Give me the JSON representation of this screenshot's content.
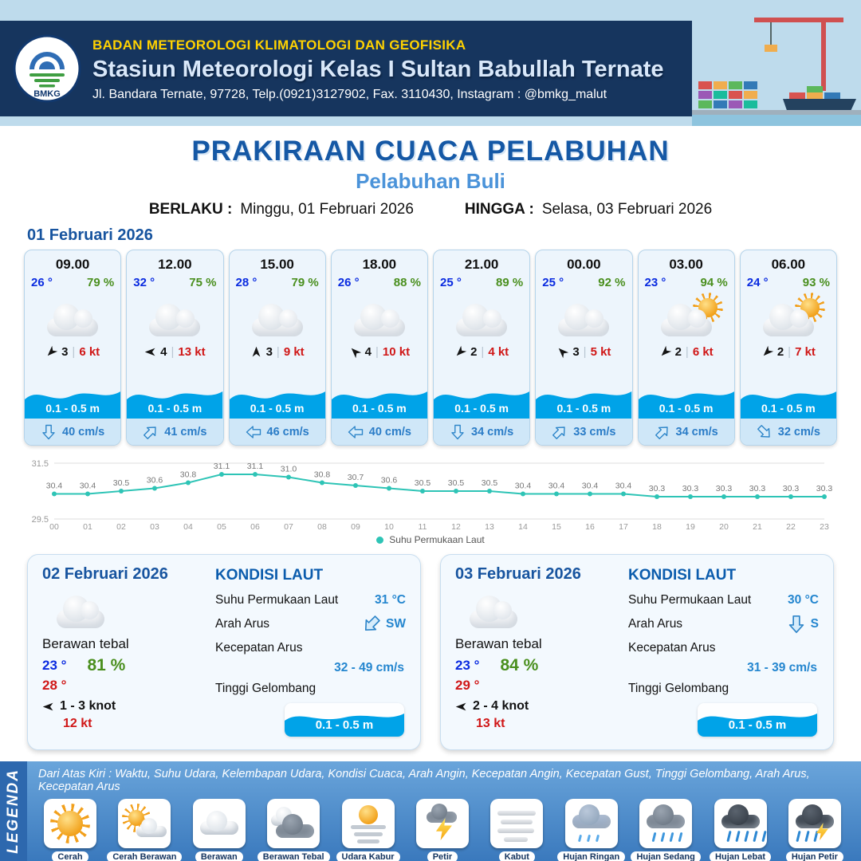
{
  "header": {
    "agency": "BADAN METEOROLOGI KLIMATOLOGI DAN GEOFISIKA",
    "station": "Stasiun Meteorologi Kelas I Sultan Babullah Ternate",
    "address": "Jl. Bandara Ternate, 97728, Telp.(0921)3127902, Fax. 3110430, Instagram : @bmkg_malut",
    "logo": "BMKG"
  },
  "title": {
    "main": "PRAKIRAAN CUACA PELABUHAN",
    "port": "Pelabuhan Buli"
  },
  "validity": {
    "berlaku_label": "BERLAKU :",
    "berlaku": "Minggu, 01 Februari 2026",
    "hingga_label": "HINGGA :",
    "hingga": "Selasa, 03 Februari 2026"
  },
  "ui": {
    "separator": "|"
  },
  "day1": {
    "date": "01 Februari 2026",
    "cards": [
      {
        "time": "09.00",
        "temp": "26 °",
        "humidity": "79 %",
        "icon": "cloudy",
        "wind_dir": "SW",
        "wind_speed": "3",
        "wind_kt": "6 kt",
        "wave": "0.1 - 0.5 m",
        "current_dir": "S",
        "current_speed": "40 cm/s"
      },
      {
        "time": "12.00",
        "temp": "32 °",
        "humidity": "75 %",
        "icon": "cloudy",
        "wind_dir": "W",
        "wind_speed": "4",
        "wind_kt": "13 kt",
        "wave": "0.1 - 0.5 m",
        "current_dir": "NE",
        "current_speed": "41 cm/s"
      },
      {
        "time": "15.00",
        "temp": "28 °",
        "humidity": "79 %",
        "icon": "cloudy",
        "wind_dir": "N",
        "wind_speed": "3",
        "wind_kt": "9 kt",
        "wave": "0.1 - 0.5 m",
        "current_dir": "W",
        "current_speed": "46 cm/s"
      },
      {
        "time": "18.00",
        "temp": "26 °",
        "humidity": "88 %",
        "icon": "cloudy",
        "wind_dir": "NW",
        "wind_speed": "4",
        "wind_kt": "10 kt",
        "wave": "0.1 - 0.5 m",
        "current_dir": "W",
        "current_speed": "40 cm/s"
      },
      {
        "time": "21.00",
        "temp": "25 °",
        "humidity": "89 %",
        "icon": "cloudy",
        "wind_dir": "SW",
        "wind_speed": "2",
        "wind_kt": "4 kt",
        "wave": "0.1 - 0.5 m",
        "current_dir": "S",
        "current_speed": "34 cm/s"
      },
      {
        "time": "00.00",
        "temp": "25 °",
        "humidity": "92 %",
        "icon": "cloudy",
        "wind_dir": "NW",
        "wind_speed": "3",
        "wind_kt": "5 kt",
        "wave": "0.1 - 0.5 m",
        "current_dir": "NE",
        "current_speed": "33 cm/s"
      },
      {
        "time": "03.00",
        "temp": "23 °",
        "humidity": "94 %",
        "icon": "partly-sunny",
        "wind_dir": "SW",
        "wind_speed": "2",
        "wind_kt": "6 kt",
        "wave": "0.1 - 0.5 m",
        "current_dir": "NE",
        "current_speed": "34 cm/s"
      },
      {
        "time": "06.00",
        "temp": "24 °",
        "humidity": "93 %",
        "icon": "partly-sunny",
        "wind_dir": "SW",
        "wind_speed": "2",
        "wind_kt": "7 kt",
        "wave": "0.1 - 0.5 m",
        "current_dir": "SE",
        "current_speed": "32 cm/s"
      }
    ]
  },
  "chart_data": {
    "type": "line",
    "x": [
      "00",
      "01",
      "02",
      "03",
      "04",
      "05",
      "06",
      "07",
      "08",
      "09",
      "10",
      "11",
      "12",
      "13",
      "14",
      "15",
      "16",
      "17",
      "18",
      "19",
      "20",
      "21",
      "22",
      "23"
    ],
    "series": [
      {
        "name": "Suhu Permukaan Laut",
        "values": [
          30.4,
          30.4,
          30.5,
          30.6,
          30.8,
          31.1,
          31.1,
          31.0,
          30.8,
          30.7,
          30.6,
          30.5,
          30.5,
          30.5,
          30.4,
          30.4,
          30.4,
          30.4,
          30.3,
          30.3,
          30.3,
          30.3,
          30.3,
          30.3
        ]
      }
    ],
    "ylim": [
      29.5,
      31.5
    ],
    "line_color": "#2ec4b6",
    "legend": "Suhu Permukaan Laut"
  },
  "day2": {
    "date": "02 Februari 2026",
    "condition": "Berawan tebal",
    "icon": "cloudy",
    "temp_min": "23 °",
    "temp_max": "28 °",
    "humidity": "81 %",
    "wind_dir": "W",
    "wind_range": "1 - 3 knot",
    "wind_kt": "12 kt",
    "sea": {
      "heading": "KONDISI LAUT",
      "sst_label": "Suhu Permukaan Laut",
      "sst": "31 °C",
      "current_dir_label": "Arah Arus",
      "current_dir": "SW",
      "current_speed_label": "Kecepatan Arus",
      "current_speed": "32 - 49 cm/s",
      "wave_label": "Tinggi Gelombang",
      "wave": "0.1 - 0.5 m"
    }
  },
  "day3": {
    "date": "03 Februari 2026",
    "condition": "Berawan tebal",
    "icon": "cloudy",
    "temp_min": "23 °",
    "temp_max": "29 °",
    "humidity": "84 %",
    "wind_dir": "W",
    "wind_range": "2 - 4 knot",
    "wind_kt": "13 kt",
    "sea": {
      "heading": "KONDISI LAUT",
      "sst_label": "Suhu Permukaan Laut",
      "sst": "30 °C",
      "current_dir_label": "Arah Arus",
      "current_dir": "S",
      "current_speed_label": "Kecepatan Arus",
      "current_speed": "31 - 39 cm/s",
      "wave_label": "Tinggi Gelombang",
      "wave": "0.1 - 0.5 m"
    }
  },
  "legend": {
    "vertical_label": "LEGENDA",
    "description": "Dari Atas Kiri : Waktu, Suhu Udara, Kelembapan Udara, Kondisi Cuaca, Arah Angin, Kecepatan Angin, Kecepatan Gust, Tinggi Gelombang, Arah Arus, Kecepatan Arus",
    "items": [
      {
        "label": "Cerah",
        "icon": "sun"
      },
      {
        "label": "Cerah Berawan",
        "icon": "sun-cloud"
      },
      {
        "label": "Berawan",
        "icon": "cloud"
      },
      {
        "label": "Berawan Tebal",
        "icon": "cloud-thick"
      },
      {
        "label": "Udara Kabur",
        "icon": "haze"
      },
      {
        "label": "Petir",
        "icon": "lightning"
      },
      {
        "label": "Kabut",
        "icon": "fog"
      },
      {
        "label": "Hujan Ringan",
        "icon": "rain-light"
      },
      {
        "label": "Hujan Sedang",
        "icon": "rain-moderate"
      },
      {
        "label": "Hujan Lebat",
        "icon": "rain-heavy"
      },
      {
        "label": "Hujan Petir",
        "icon": "thunderstorm"
      }
    ]
  }
}
